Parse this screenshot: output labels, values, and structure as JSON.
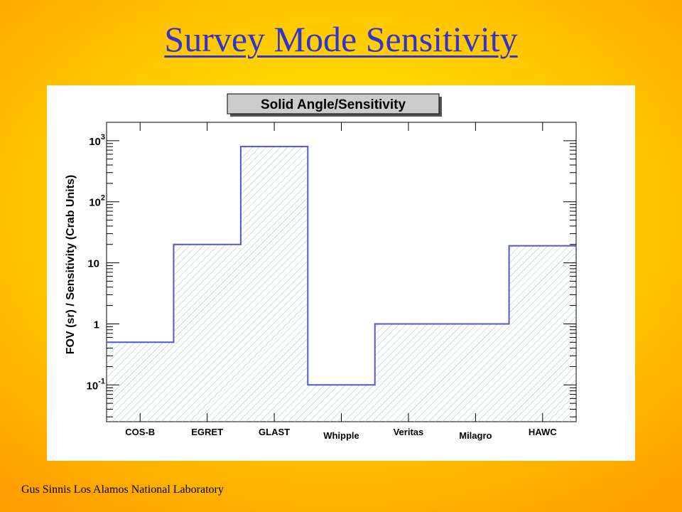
{
  "slide": {
    "title": "Survey Mode Sensitivity",
    "footer": "Gus Sinnis Los Alamos National Laboratory"
  },
  "colors": {
    "title": "#3333cc",
    "histogram_line": "#5555cc",
    "hatch": "#9fc0c8",
    "title_box": "#cccccc"
  },
  "chart_data": {
    "type": "bar",
    "title": "Solid Angle/Sensitivity",
    "ylabel": "FOV (sr) / Sensitivity (Crab Units)",
    "xlabel": "",
    "categories": [
      "COS-B",
      "EGRET",
      "GLAST",
      "Whipple",
      "Veritas",
      "Milagro",
      "HAWC"
    ],
    "values": [
      0.5,
      20,
      800,
      0.1,
      1,
      1,
      19
    ],
    "yscale": "log",
    "ylim": [
      0.025,
      2000
    ],
    "yticks": [
      {
        "value": 0.1,
        "label": "10",
        "exp": "-1"
      },
      {
        "value": 1,
        "label": "1",
        "exp": ""
      },
      {
        "value": 10,
        "label": "10",
        "exp": ""
      },
      {
        "value": 100,
        "label": "10",
        "exp": "2"
      },
      {
        "value": 1000,
        "label": "10",
        "exp": "3"
      }
    ],
    "grid": false,
    "legend": "none",
    "style": "hatched-histogram"
  }
}
